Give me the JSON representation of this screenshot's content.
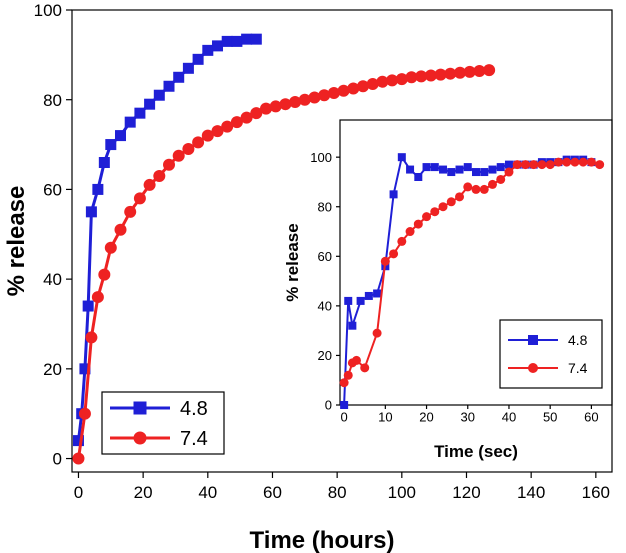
{
  "chart_data": [
    {
      "type": "line",
      "xlabel": "Time (hours)",
      "ylabel": "% release",
      "xlim": [
        -2,
        165
      ],
      "ylim": [
        -3,
        100
      ],
      "xticks": [
        0,
        20,
        40,
        60,
        80,
        100,
        120,
        140,
        160
      ],
      "yticks": [
        0,
        20,
        40,
        60,
        80,
        100
      ],
      "legend_position": "bottom-left",
      "series": [
        {
          "name": "4.8",
          "color": "#1f1fd6",
          "marker": "square",
          "x": [
            0,
            1,
            2,
            3,
            4,
            6,
            8,
            10,
            13,
            16,
            19,
            22,
            25,
            28,
            31,
            34,
            37,
            40,
            43,
            46,
            49,
            52,
            55
          ],
          "y": [
            4,
            10,
            20,
            34,
            55,
            60,
            66,
            70,
            72,
            75,
            77,
            79,
            81,
            83,
            85,
            87,
            89,
            91,
            92,
            93,
            93,
            93.5,
            93.5
          ]
        },
        {
          "name": "7.4",
          "color": "#ee2222",
          "marker": "circle",
          "x": [
            0,
            2,
            4,
            6,
            8,
            10,
            13,
            16,
            19,
            22,
            25,
            28,
            31,
            34,
            37,
            40,
            43,
            46,
            49,
            52,
            55,
            58,
            61,
            64,
            67,
            70,
            73,
            76,
            79,
            82,
            85,
            88,
            91,
            94,
            97,
            100,
            103,
            106,
            109,
            112,
            115,
            118,
            121,
            124,
            127
          ],
          "y": [
            0,
            10,
            27,
            36,
            41,
            47,
            51,
            55,
            58,
            61,
            63,
            65.5,
            67.5,
            69,
            70.5,
            72,
            73,
            74,
            75,
            76,
            77,
            78,
            78.5,
            79,
            79.5,
            80,
            80.5,
            81,
            81.5,
            82,
            82.5,
            83,
            83.5,
            84,
            84.3,
            84.6,
            85,
            85.2,
            85.4,
            85.6,
            85.8,
            86,
            86.2,
            86.4,
            86.6
          ]
        }
      ]
    },
    {
      "type": "line",
      "xlabel": "Time (sec)",
      "ylabel": "% release",
      "xlim": [
        -1,
        65
      ],
      "ylim": [
        0,
        115
      ],
      "xticks": [
        0,
        10,
        20,
        30,
        40,
        50,
        60
      ],
      "yticks": [
        0,
        20,
        40,
        60,
        80,
        100
      ],
      "legend_position": "bottom-right",
      "series": [
        {
          "name": "4.8",
          "color": "#1f1fd6",
          "marker": "square",
          "x": [
            0,
            1,
            2,
            4,
            6,
            8,
            10,
            12,
            14,
            16,
            18,
            20,
            22,
            24,
            26,
            28,
            30,
            32,
            34,
            36,
            38,
            40,
            42,
            44,
            46,
            48,
            50,
            52,
            54,
            56,
            58,
            60
          ],
          "y": [
            0,
            42,
            32,
            42,
            44,
            45,
            56,
            85,
            100,
            95,
            92,
            96,
            96,
            95,
            94,
            95,
            96,
            94,
            94,
            95,
            96,
            97,
            97,
            97,
            97,
            98,
            98,
            98,
            99,
            99,
            99,
            98
          ]
        },
        {
          "name": "7.4",
          "color": "#ee2222",
          "marker": "circle",
          "x": [
            0,
            1,
            2,
            3,
            5,
            8,
            10,
            12,
            14,
            16,
            18,
            20,
            22,
            24,
            26,
            28,
            30,
            32,
            34,
            36,
            38,
            40,
            42,
            44,
            46,
            48,
            50,
            52,
            54,
            56,
            58,
            60,
            62
          ],
          "y": [
            9,
            12,
            17,
            18,
            15,
            29,
            58,
            61,
            66,
            70,
            73,
            76,
            78,
            80,
            82,
            84,
            88,
            87,
            87,
            89,
            91,
            94,
            97,
            97,
            97,
            97,
            97,
            98,
            98,
            98,
            98,
            98,
            97
          ]
        }
      ]
    }
  ]
}
